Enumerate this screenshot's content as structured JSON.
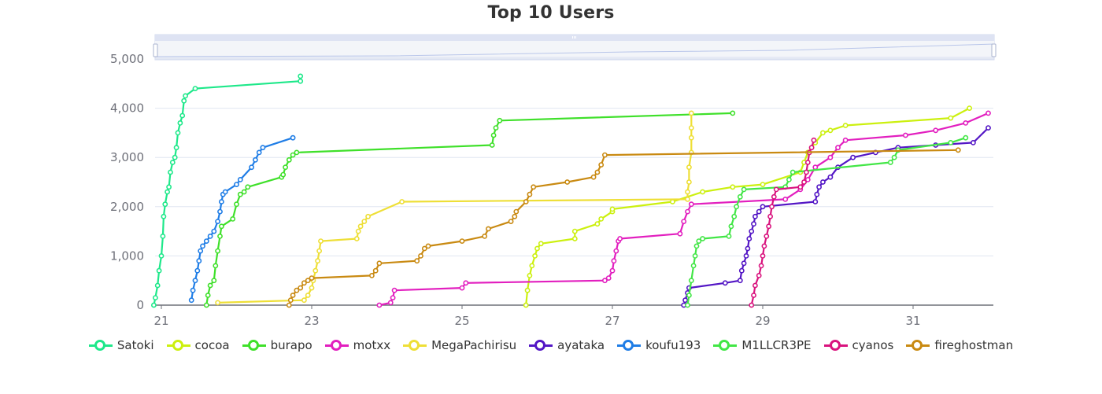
{
  "chart_data": {
    "type": "line",
    "title": "Top 10 Users",
    "xlabel": "",
    "ylabel": "",
    "xlim": [
      20.9,
      32.0
    ],
    "ylim": [
      0,
      5000
    ],
    "x_ticks": [
      "21",
      "23",
      "25",
      "27",
      "29",
      "31"
    ],
    "y_ticks": [
      "0",
      "1,000",
      "2,000",
      "3,000",
      "4,000",
      "5,000"
    ],
    "grid": true,
    "legend_position": "bottom",
    "data_zoom_slider": true,
    "series": [
      {
        "name": "Satoki",
        "color": "#1ee88a",
        "points": [
          [
            20.9,
            0
          ],
          [
            20.92,
            150
          ],
          [
            20.95,
            400
          ],
          [
            20.97,
            700
          ],
          [
            21.0,
            1000
          ],
          [
            21.02,
            1400
          ],
          [
            21.03,
            1800
          ],
          [
            21.05,
            2050
          ],
          [
            21.08,
            2300
          ],
          [
            21.1,
            2400
          ],
          [
            21.12,
            2700
          ],
          [
            21.15,
            2900
          ],
          [
            21.18,
            3000
          ],
          [
            21.2,
            3200
          ],
          [
            21.22,
            3500
          ],
          [
            21.25,
            3700
          ],
          [
            21.28,
            3850
          ],
          [
            21.3,
            4150
          ],
          [
            21.32,
            4250
          ],
          [
            21.45,
            4400
          ],
          [
            22.85,
            4550
          ],
          [
            22.85,
            4650
          ]
        ]
      },
      {
        "name": "cocoa",
        "color": "#ccf00f",
        "points": [
          [
            25.85,
            0
          ],
          [
            25.87,
            300
          ],
          [
            25.9,
            600
          ],
          [
            25.93,
            800
          ],
          [
            25.97,
            1000
          ],
          [
            26.0,
            1150
          ],
          [
            26.05,
            1250
          ],
          [
            26.5,
            1350
          ],
          [
            26.5,
            1500
          ],
          [
            26.8,
            1650
          ],
          [
            26.85,
            1750
          ],
          [
            27.0,
            1900
          ],
          [
            27.0,
            1950
          ],
          [
            27.8,
            2100
          ],
          [
            28.2,
            2300
          ],
          [
            28.6,
            2400
          ],
          [
            29.0,
            2450
          ],
          [
            29.5,
            2700
          ],
          [
            29.55,
            2900
          ],
          [
            29.6,
            3100
          ],
          [
            29.7,
            3300
          ],
          [
            29.8,
            3500
          ],
          [
            29.9,
            3550
          ],
          [
            30.1,
            3650
          ],
          [
            31.5,
            3800
          ],
          [
            31.75,
            4000
          ]
        ]
      },
      {
        "name": "burapo",
        "color": "#3fe02a",
        "points": [
          [
            21.6,
            0
          ],
          [
            21.62,
            200
          ],
          [
            21.65,
            400
          ],
          [
            21.7,
            500
          ],
          [
            21.72,
            800
          ],
          [
            21.75,
            1100
          ],
          [
            21.78,
            1400
          ],
          [
            21.8,
            1600
          ],
          [
            21.95,
            1750
          ],
          [
            22.0,
            2050
          ],
          [
            22.05,
            2250
          ],
          [
            22.1,
            2300
          ],
          [
            22.15,
            2400
          ],
          [
            22.6,
            2600
          ],
          [
            22.62,
            2650
          ],
          [
            22.65,
            2800
          ],
          [
            22.7,
            2950
          ],
          [
            22.75,
            3050
          ],
          [
            22.8,
            3100
          ],
          [
            25.4,
            3250
          ],
          [
            25.42,
            3450
          ],
          [
            25.45,
            3600
          ],
          [
            25.5,
            3750
          ],
          [
            28.6,
            3900
          ]
        ]
      },
      {
        "name": "motxx",
        "color": "#e21fbf",
        "points": [
          [
            23.9,
            0
          ],
          [
            24.05,
            50
          ],
          [
            24.08,
            150
          ],
          [
            24.1,
            300
          ],
          [
            25.0,
            350
          ],
          [
            25.05,
            450
          ],
          [
            26.9,
            500
          ],
          [
            26.95,
            550
          ],
          [
            27.0,
            700
          ],
          [
            27.02,
            900
          ],
          [
            27.05,
            1100
          ],
          [
            27.08,
            1300
          ],
          [
            27.1,
            1350
          ],
          [
            27.9,
            1450
          ],
          [
            27.95,
            1700
          ],
          [
            28.0,
            1900
          ],
          [
            28.05,
            2050
          ],
          [
            29.3,
            2150
          ],
          [
            29.5,
            2350
          ],
          [
            29.6,
            2550
          ],
          [
            29.7,
            2800
          ],
          [
            29.9,
            3000
          ],
          [
            30.0,
            3200
          ],
          [
            30.1,
            3350
          ],
          [
            30.9,
            3450
          ],
          [
            31.3,
            3550
          ],
          [
            31.7,
            3700
          ],
          [
            32.0,
            3900
          ]
        ]
      },
      {
        "name": "MegaPachirisu",
        "color": "#eedf37",
        "points": [
          [
            21.75,
            50
          ],
          [
            22.9,
            100
          ],
          [
            22.95,
            200
          ],
          [
            23.0,
            350
          ],
          [
            23.02,
            500
          ],
          [
            23.05,
            700
          ],
          [
            23.08,
            900
          ],
          [
            23.1,
            1100
          ],
          [
            23.12,
            1300
          ],
          [
            23.6,
            1350
          ],
          [
            23.62,
            1500
          ],
          [
            23.65,
            1600
          ],
          [
            23.7,
            1700
          ],
          [
            23.75,
            1800
          ],
          [
            24.2,
            2100
          ],
          [
            28.0,
            2150
          ],
          [
            28.0,
            2300
          ],
          [
            28.02,
            2500
          ],
          [
            28.02,
            2800
          ],
          [
            28.05,
            3100
          ],
          [
            28.05,
            3400
          ],
          [
            28.05,
            3600
          ],
          [
            28.05,
            3900
          ]
        ]
      },
      {
        "name": "ayataka",
        "color": "#5316c5",
        "points": [
          [
            27.95,
            0
          ],
          [
            27.97,
            100
          ],
          [
            28.0,
            250
          ],
          [
            28.02,
            350
          ],
          [
            28.5,
            450
          ],
          [
            28.7,
            500
          ],
          [
            28.72,
            700
          ],
          [
            28.75,
            850
          ],
          [
            28.78,
            1000
          ],
          [
            28.8,
            1150
          ],
          [
            28.82,
            1350
          ],
          [
            28.85,
            1500
          ],
          [
            28.88,
            1650
          ],
          [
            28.9,
            1800
          ],
          [
            28.95,
            1900
          ],
          [
            29.0,
            2000
          ],
          [
            29.7,
            2100
          ],
          [
            29.72,
            2250
          ],
          [
            29.75,
            2400
          ],
          [
            29.8,
            2500
          ],
          [
            29.9,
            2600
          ],
          [
            30.0,
            2800
          ],
          [
            30.2,
            3000
          ],
          [
            30.5,
            3100
          ],
          [
            30.8,
            3200
          ],
          [
            31.3,
            3250
          ],
          [
            31.8,
            3300
          ],
          [
            32.0,
            3600
          ]
        ]
      },
      {
        "name": "koufu193",
        "color": "#1f7de6",
        "points": [
          [
            21.4,
            100
          ],
          [
            21.42,
            300
          ],
          [
            21.45,
            500
          ],
          [
            21.48,
            700
          ],
          [
            21.5,
            900
          ],
          [
            21.52,
            1100
          ],
          [
            21.55,
            1200
          ],
          [
            21.6,
            1300
          ],
          [
            21.65,
            1400
          ],
          [
            21.7,
            1500
          ],
          [
            21.75,
            1700
          ],
          [
            21.78,
            1900
          ],
          [
            21.8,
            2100
          ],
          [
            21.82,
            2250
          ],
          [
            21.85,
            2300
          ],
          [
            22.0,
            2450
          ],
          [
            22.05,
            2550
          ],
          [
            22.2,
            2800
          ],
          [
            22.25,
            2950
          ],
          [
            22.3,
            3100
          ],
          [
            22.35,
            3200
          ],
          [
            22.75,
            3400
          ]
        ]
      },
      {
        "name": "M1LLCR3PE",
        "color": "#42e646",
        "points": [
          [
            28.0,
            0
          ],
          [
            28.02,
            200
          ],
          [
            28.05,
            500
          ],
          [
            28.08,
            800
          ],
          [
            28.1,
            1000
          ],
          [
            28.12,
            1200
          ],
          [
            28.15,
            1300
          ],
          [
            28.2,
            1350
          ],
          [
            28.55,
            1400
          ],
          [
            28.58,
            1600
          ],
          [
            28.62,
            1800
          ],
          [
            28.65,
            2000
          ],
          [
            28.7,
            2200
          ],
          [
            28.75,
            2350
          ],
          [
            29.3,
            2400
          ],
          [
            29.35,
            2550
          ],
          [
            29.4,
            2700
          ],
          [
            30.7,
            2900
          ],
          [
            30.75,
            3000
          ],
          [
            30.8,
            3150
          ],
          [
            31.5,
            3300
          ],
          [
            31.7,
            3400
          ]
        ]
      },
      {
        "name": "cyanos",
        "color": "#d9137e",
        "points": [
          [
            28.85,
            0
          ],
          [
            28.88,
            200
          ],
          [
            28.9,
            400
          ],
          [
            28.95,
            600
          ],
          [
            28.98,
            800
          ],
          [
            29.0,
            1000
          ],
          [
            29.02,
            1200
          ],
          [
            29.05,
            1400
          ],
          [
            29.08,
            1600
          ],
          [
            29.1,
            1800
          ],
          [
            29.12,
            2000
          ],
          [
            29.15,
            2200
          ],
          [
            29.18,
            2350
          ],
          [
            29.5,
            2400
          ],
          [
            29.55,
            2500
          ],
          [
            29.58,
            2700
          ],
          [
            29.6,
            2900
          ],
          [
            29.62,
            3100
          ],
          [
            29.65,
            3200
          ],
          [
            29.68,
            3350
          ]
        ]
      },
      {
        "name": "fireghostman",
        "color": "#c98a12",
        "points": [
          [
            22.7,
            0
          ],
          [
            22.72,
            100
          ],
          [
            22.75,
            200
          ],
          [
            22.8,
            300
          ],
          [
            22.85,
            350
          ],
          [
            22.9,
            450
          ],
          [
            22.95,
            500
          ],
          [
            23.0,
            550
          ],
          [
            23.8,
            600
          ],
          [
            23.85,
            700
          ],
          [
            23.9,
            850
          ],
          [
            24.4,
            900
          ],
          [
            24.45,
            1000
          ],
          [
            24.5,
            1150
          ],
          [
            24.55,
            1200
          ],
          [
            25.0,
            1300
          ],
          [
            25.3,
            1400
          ],
          [
            25.35,
            1550
          ],
          [
            25.65,
            1700
          ],
          [
            25.7,
            1800
          ],
          [
            25.72,
            1900
          ],
          [
            25.85,
            2100
          ],
          [
            25.9,
            2250
          ],
          [
            25.95,
            2400
          ],
          [
            26.4,
            2500
          ],
          [
            26.75,
            2600
          ],
          [
            26.8,
            2700
          ],
          [
            26.85,
            2850
          ],
          [
            26.9,
            3050
          ],
          [
            31.6,
            3150
          ]
        ]
      }
    ]
  },
  "legend": {
    "items": [
      {
        "label": "Satoki",
        "color": "#1ee88a"
      },
      {
        "label": "cocoa",
        "color": "#ccf00f"
      },
      {
        "label": "burapo",
        "color": "#3fe02a"
      },
      {
        "label": "motxx",
        "color": "#e21fbf"
      },
      {
        "label": "MegaPachirisu",
        "color": "#eedf37"
      },
      {
        "label": "ayataka",
        "color": "#5316c5"
      },
      {
        "label": "koufu193",
        "color": "#1f7de6"
      },
      {
        "label": "M1LLCR3PE",
        "color": "#42e646"
      },
      {
        "label": "cyanos",
        "color": "#d9137e"
      },
      {
        "label": "fireghostman",
        "color": "#c98a12"
      }
    ]
  },
  "style": {
    "grid_color": "#e0e6f1",
    "axis_color": "#6e7079",
    "slider_bg": "#dee3f3",
    "slider_fill": "#f3f5f9"
  }
}
